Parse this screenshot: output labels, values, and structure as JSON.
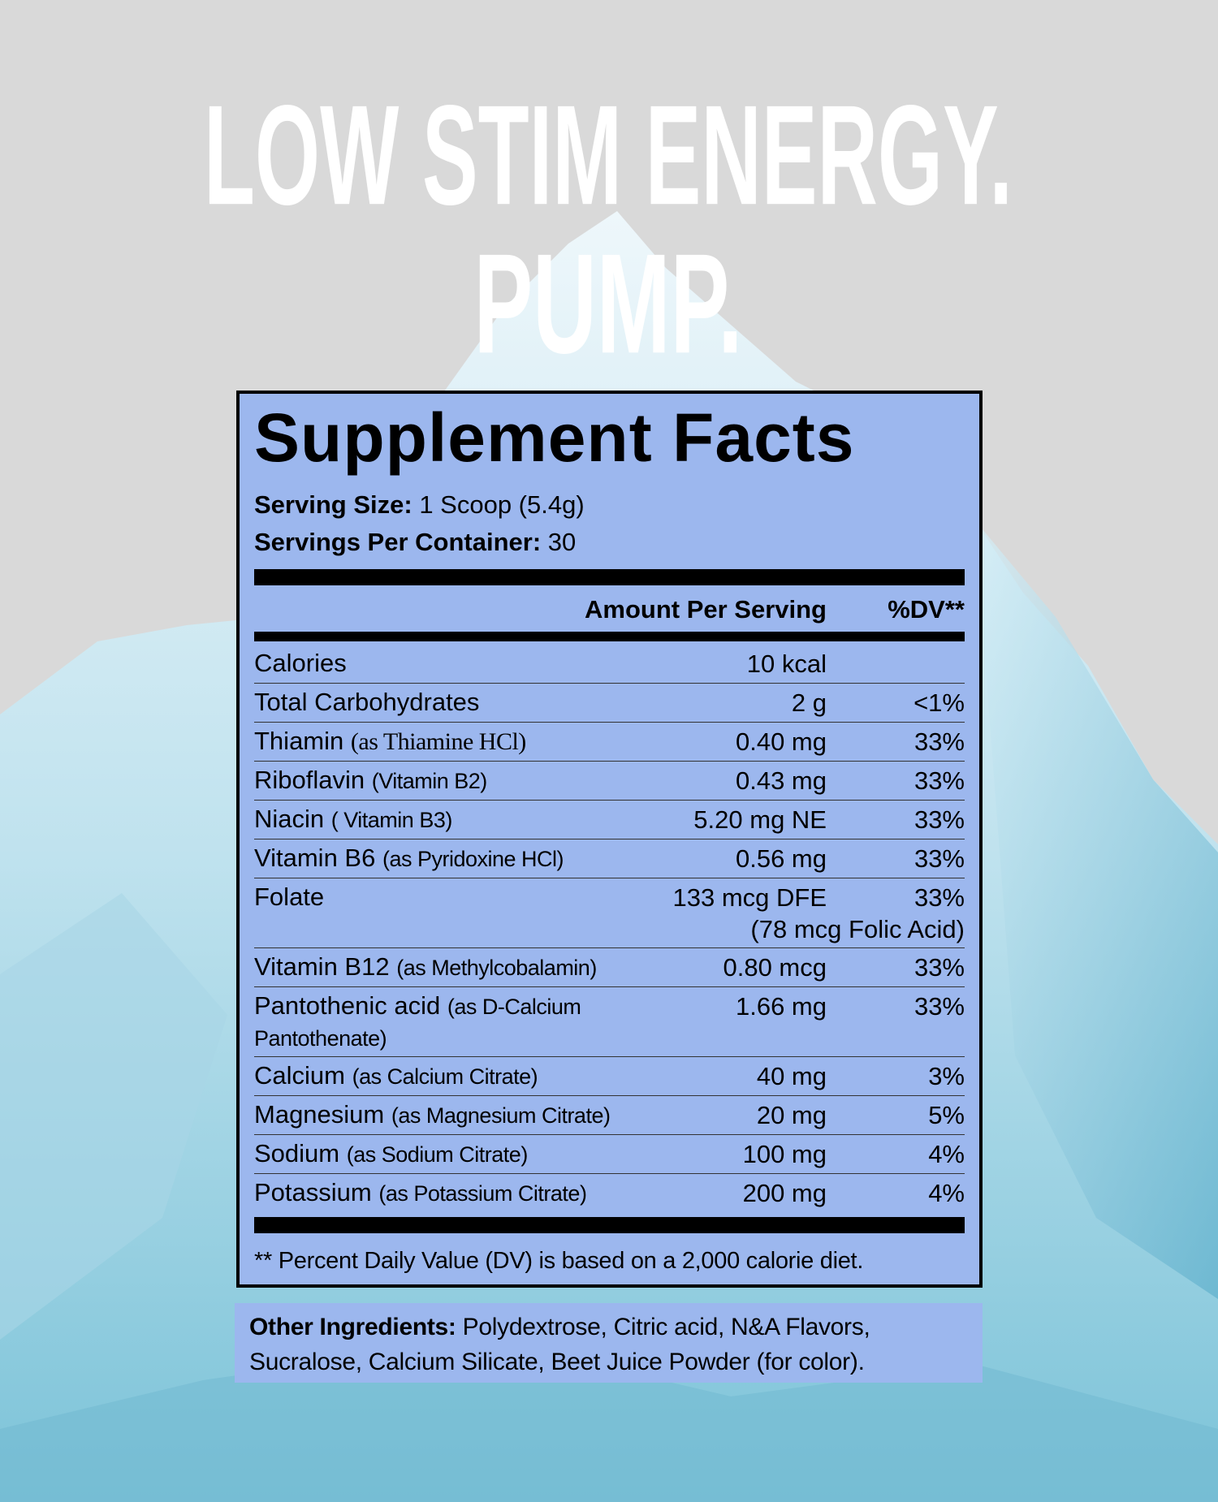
{
  "headline": [
    "LOW STIM ENERGY.",
    "PUMP."
  ],
  "facts": {
    "title": "Supplement Facts",
    "serving_size_label": "Serving Size:",
    "serving_size": "1 Scoop (5.4g)",
    "servings_label": "Servings Per Container:",
    "servings": "30",
    "header": {
      "amount": "Amount Per Serving",
      "dv": "%DV**"
    },
    "rows": [
      {
        "name": "Calories",
        "amount": "10 kcal"
      },
      {
        "name": "Total Carbohydrates",
        "amount": "2 g",
        "dv": "<1%"
      },
      {
        "name": "Thiamin",
        "detail": "(as Thiamine HCl)",
        "amount": "0.40 mg",
        "dv": "33%"
      },
      {
        "name": "Riboflavin",
        "detail": "(Vitamin B2)",
        "amount": "0.43 mg",
        "dv": "33%"
      },
      {
        "name": "Niacin",
        "detail": "( Vitamin B3)",
        "amount": "5.20 mg NE",
        "dv": "33%"
      },
      {
        "name": "Vitamin B6",
        "detail": "(as Pyridoxine HCl)",
        "amount": "0.56 mg",
        "dv": "33%"
      },
      {
        "name": "Folate",
        "amount": "133 mcg DFE",
        "dv": "33%",
        "note": "(78 mcg Folic Acid)"
      },
      {
        "name": "Vitamin B12",
        "detail": "(as Methylcobalamin)",
        "amount": "0.80 mcg",
        "dv": "33%"
      },
      {
        "name": "Pantothenic acid",
        "detail": "(as D-Calcium Pantothenate)",
        "amount": "1.66 mg",
        "dv": "33%"
      },
      {
        "name": "Calcium",
        "detail": "(as Calcium Citrate)",
        "amount": "40 mg",
        "dv": "3%"
      },
      {
        "name": "Magnesium",
        "detail": "(as Magnesium Citrate)",
        "amount": "20 mg",
        "dv": "5%"
      },
      {
        "name": "Sodium",
        "detail": "(as Sodium Citrate)",
        "amount": "100 mg",
        "dv": "4%"
      },
      {
        "name": "Potassium",
        "detail": "(as Potassium Citrate)",
        "amount": "200 mg",
        "dv": "4%"
      }
    ],
    "footnote": "** Percent Daily Value (DV) is based on a 2,000 calorie diet."
  },
  "other_ingredients": {
    "label": "Other Ingredients:",
    "text": "Polydextrose, Citric acid, N&A Flavors, Sucralose, Calcium Silicate, Beet Juice Powder (for color)."
  }
}
